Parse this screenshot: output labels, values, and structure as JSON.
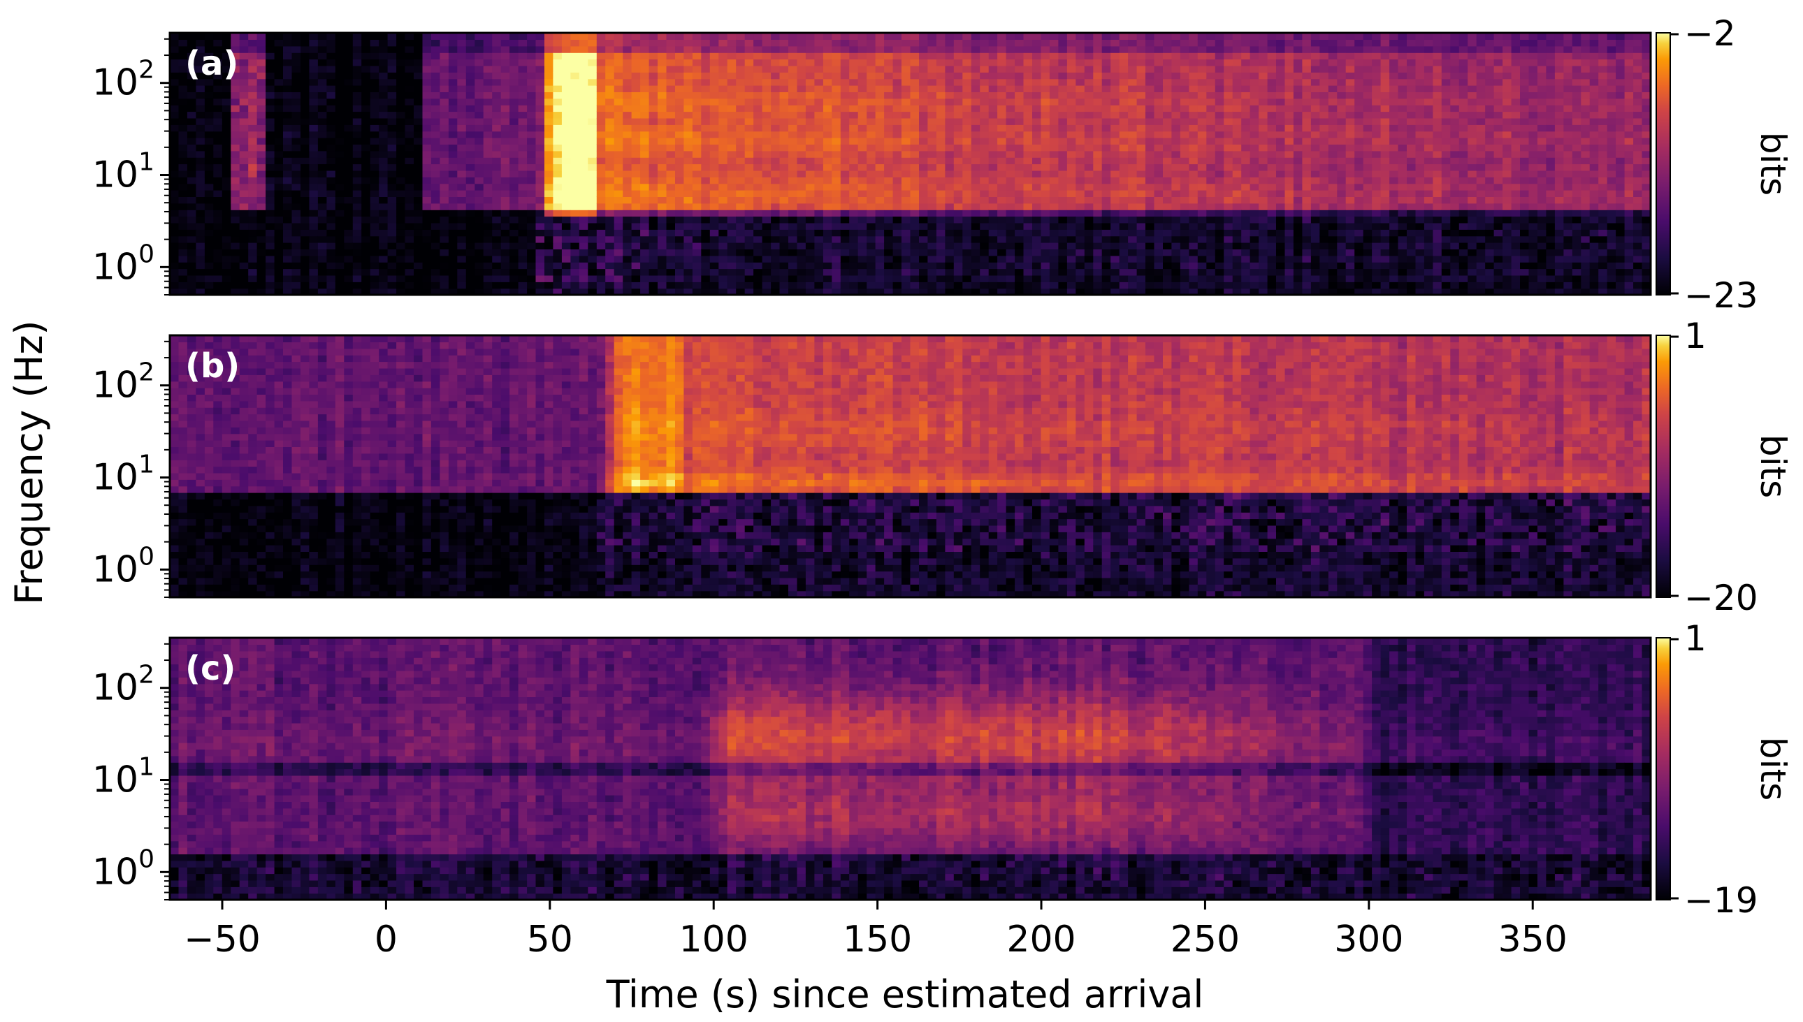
{
  "figure": {
    "ylabel": "Frequency (Hz)",
    "xlabel": "Time (s) since estimated arrival"
  },
  "chart_data": [
    {
      "type": "heatmap",
      "panel_label": "(a)",
      "xlabel": "Time (s) since estimated arrival",
      "ylabel": "Frequency (Hz)",
      "xlim": [
        -66,
        386
      ],
      "ylim": [
        0.5,
        350
      ],
      "yscale": "log",
      "x_ticks": [
        -50,
        0,
        50,
        100,
        150,
        200,
        250,
        300,
        350
      ],
      "y_ticks": [
        1,
        10,
        100
      ],
      "y_tick_labels": [
        "10^0",
        "10^1",
        "10^2"
      ],
      "colormap": "inferno",
      "colorbar": {
        "label": "bits",
        "min": -23,
        "max": -2,
        "min_label": "−23",
        "max_label": "−2"
      },
      "features": {
        "prearrival_burst_time": [
          -48,
          -38
        ],
        "background_level_start": 10,
        "strongest_onset": 55,
        "bright_band_freqs": [
          6,
          25,
          60
        ],
        "low_freq_onset": 45
      }
    },
    {
      "type": "heatmap",
      "panel_label": "(b)",
      "xlabel": "Time (s) since estimated arrival",
      "ylabel": "Frequency (Hz)",
      "xlim": [
        -66,
        386
      ],
      "ylim": [
        0.5,
        350
      ],
      "yscale": "log",
      "x_ticks": [
        -50,
        0,
        50,
        100,
        150,
        200,
        250,
        300,
        350
      ],
      "y_ticks": [
        1,
        10,
        100
      ],
      "y_tick_labels": [
        "10^0",
        "10^1",
        "10^2"
      ],
      "colormap": "inferno",
      "colorbar": {
        "label": "bits",
        "min": -20,
        "max": 1,
        "min_label": "−20",
        "max_label": "1"
      },
      "features": {
        "strongest_onset": 72,
        "bright_band_freqs": [
          8,
          30,
          100
        ],
        "low_freq_cutoff": 6
      }
    },
    {
      "type": "heatmap",
      "panel_label": "(c)",
      "xlabel": "Time (s) since estimated arrival",
      "ylabel": "Frequency (Hz)",
      "xlim": [
        -66,
        386
      ],
      "ylim": [
        0.5,
        350
      ],
      "yscale": "log",
      "x_ticks": [
        -50,
        0,
        50,
        100,
        150,
        200,
        250,
        300,
        350
      ],
      "y_ticks": [
        1,
        10,
        100
      ],
      "y_tick_labels": [
        "10^0",
        "10^1",
        "10^2"
      ],
      "colormap": "inferno",
      "colorbar": {
        "label": "bits",
        "min": -19,
        "max": 1,
        "min_label": "−19",
        "max_label": "1"
      },
      "features": {
        "strongest_onset": 105,
        "energetic_window": [
          105,
          215
        ],
        "decay_end": 295,
        "bright_band_freqs": [
          20,
          60,
          120
        ]
      }
    }
  ]
}
